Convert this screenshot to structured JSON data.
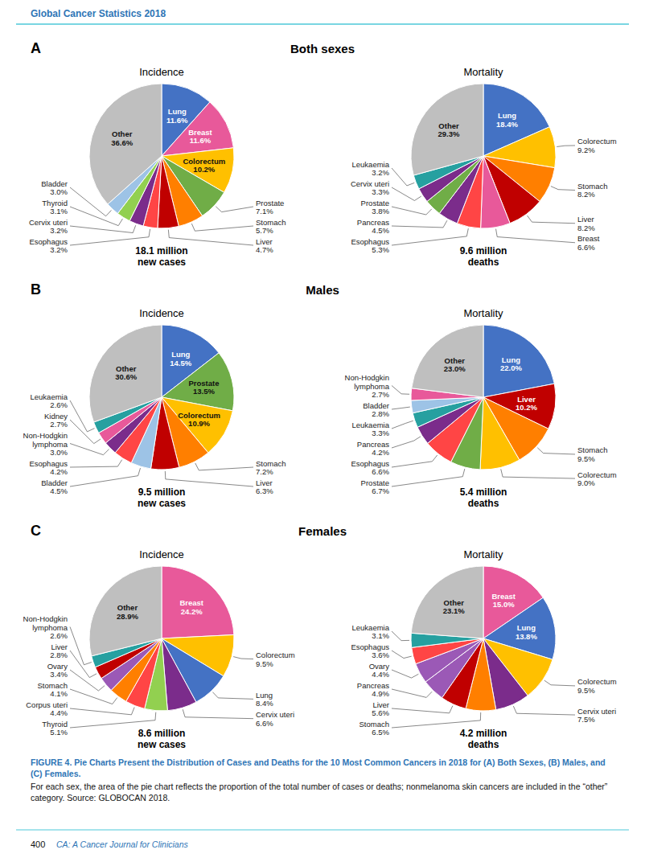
{
  "header": "Global Cancer Statistics 2018",
  "caption": [
    "FIGURE 4. Pie Charts Present the Distribution of Cases and Deaths for the 10 Most Common Cancers in 2018 for (A) Both Sexes, (B) Males, and (C) Females.",
    "For each sex, the area of the pie chart reflects the proportion of the total number of cases or deaths; nonmelanoma skin cancers are included in the “other” category. Source: GLOBOCAN 2018."
  ],
  "footer": {
    "page": "400",
    "journal": "CA: A Cancer Journal for Clinicians"
  },
  "sections": [
    {
      "label": "A",
      "title": "Both sexes"
    },
    {
      "label": "B",
      "title": "Males"
    },
    {
      "label": "C",
      "title": "Females"
    }
  ],
  "chart_data": [
    {
      "type": "pie",
      "title": "Incidence",
      "data_labels": true,
      "categories": [
        "Lung",
        "Breast",
        "Colorectum",
        "Prostate",
        "Stomach",
        "Liver",
        "Esophagus",
        "Cervix uteri",
        "Thyroid",
        "Bladder",
        "Other"
      ],
      "values": [
        11.6,
        11.6,
        10.2,
        7.1,
        5.7,
        4.7,
        3.2,
        3.2,
        3.1,
        3.0,
        36.6
      ],
      "value_labels": [
        "11.6%",
        "11.6%",
        "10.2%",
        "7.1%",
        "5.7%",
        "4.7%",
        "3.2%",
        "3.2%",
        "3.1%",
        "3.0%",
        "36.6%"
      ],
      "colors": [
        "#4472C4",
        "#E8599A",
        "#FFC000",
        "#70AD47",
        "#FF7F00",
        "#C00000",
        "#FF4545",
        "#7B2C8B",
        "#92D050",
        "#9DC3E6",
        "#BFBFBF"
      ],
      "annotations": [
        "18.1 million\nnew cases"
      ]
    },
    {
      "type": "pie",
      "title": "Mortality",
      "data_labels": true,
      "categories": [
        "Lung",
        "Colorectum",
        "Stomach",
        "Liver",
        "Breast",
        "Esophagus",
        "Pancreas",
        "Prostate",
        "Cervix uteri",
        "Leukaemia",
        "Other"
      ],
      "values": [
        18.4,
        9.2,
        8.2,
        8.2,
        6.6,
        5.3,
        4.5,
        3.8,
        3.3,
        3.2,
        29.3
      ],
      "value_labels": [
        "18.4%",
        "9.2%",
        "8.2%",
        "8.2%",
        "6.6%",
        "5.3%",
        "4.5%",
        "3.8%",
        "3.3%",
        "3.2%",
        "29.3%"
      ],
      "colors": [
        "#4472C4",
        "#FFC000",
        "#FF7F00",
        "#C00000",
        "#E8599A",
        "#FF4545",
        "#7B2C8B",
        "#70AD47",
        "#7B2C8B",
        "#26A0A0",
        "#BFBFBF"
      ],
      "annotations": [
        "9.6 million\ndeaths"
      ]
    },
    {
      "type": "pie",
      "title": "Incidence",
      "data_labels": true,
      "categories": [
        "Lung",
        "Prostate",
        "Colorectum",
        "Stomach",
        "Liver",
        "Bladder",
        "Esophagus",
        "Non-Hodgkin\nlymphoma",
        "Kidney",
        "Leukaemia",
        "Other"
      ],
      "values": [
        14.5,
        13.5,
        10.9,
        7.2,
        6.3,
        4.5,
        4.2,
        3.0,
        2.7,
        2.6,
        30.6
      ],
      "value_labels": [
        "14.5%",
        "13.5%",
        "10.9%",
        "7.2%",
        "6.3%",
        "4.5%",
        "4.2%",
        "3.0%",
        "2.7%",
        "2.6%",
        "30.6%"
      ],
      "colors": [
        "#4472C4",
        "#70AD47",
        "#FFC000",
        "#FF7F00",
        "#C00000",
        "#9DC3E6",
        "#FF4545",
        "#7B2C8B",
        "#E8599A",
        "#26A0A0",
        "#BFBFBF"
      ],
      "annotations": [
        "9.5 million\nnew cases"
      ]
    },
    {
      "type": "pie",
      "title": "Mortality",
      "data_labels": true,
      "categories": [
        "Lung",
        "Liver",
        "Stomach",
        "Colorectum",
        "Prostate",
        "Esophagus",
        "Pancreas",
        "Leukaemia",
        "Bladder",
        "Non-Hodgkin\nlymphoma",
        "Other"
      ],
      "values": [
        22.0,
        10.2,
        9.5,
        9.0,
        6.7,
        6.6,
        4.2,
        3.3,
        2.8,
        2.7,
        23.0
      ],
      "value_labels": [
        "22.0%",
        "10.2%",
        "9.5%",
        "9.0%",
        "6.7%",
        "6.6%",
        "4.2%",
        "3.3%",
        "2.8%",
        "2.7%",
        "23.0%"
      ],
      "colors": [
        "#4472C4",
        "#C00000",
        "#FF7F00",
        "#FFC000",
        "#70AD47",
        "#FF4545",
        "#7B2C8B",
        "#26A0A0",
        "#9DC3E6",
        "#E8599A",
        "#BFBFBF"
      ],
      "annotations": [
        "5.4 million\ndeaths"
      ]
    },
    {
      "type": "pie",
      "title": "Incidence",
      "data_labels": true,
      "categories": [
        "Breast",
        "Colorectum",
        "Lung",
        "Cervix uteri",
        "Thyroid",
        "Corpus uteri",
        "Stomach",
        "Ovary",
        "Liver",
        "Non-Hodgkin\nlymphoma",
        "Other"
      ],
      "values": [
        24.2,
        9.5,
        8.4,
        6.6,
        5.1,
        4.4,
        4.1,
        3.4,
        2.8,
        2.6,
        28.9
      ],
      "value_labels": [
        "24.2%",
        "9.5%",
        "8.4%",
        "6.6%",
        "5.1%",
        "4.4%",
        "4.1%",
        "3.4%",
        "2.8%",
        "2.6%",
        "28.9%"
      ],
      "colors": [
        "#E8599A",
        "#FFC000",
        "#4472C4",
        "#7B2C8B",
        "#92D050",
        "#FF4545",
        "#FF7F00",
        "#9B59B6",
        "#C00000",
        "#26A0A0",
        "#BFBFBF"
      ],
      "annotations": [
        "8.6 million\nnew cases"
      ]
    },
    {
      "type": "pie",
      "title": "Mortality",
      "data_labels": true,
      "categories": [
        "Breast",
        "Lung",
        "Colorectum",
        "Cervix uteri",
        "Stomach",
        "Liver",
        "Pancreas",
        "Ovary",
        "Esophagus",
        "Leukaemia",
        "Other"
      ],
      "values": [
        15.0,
        13.8,
        9.5,
        7.5,
        6.5,
        5.6,
        4.9,
        4.4,
        3.6,
        3.1,
        23.1
      ],
      "value_labels": [
        "15.0%",
        "13.8%",
        "9.5%",
        "7.5%",
        "6.5%",
        "5.6%",
        "4.9%",
        "4.4%",
        "3.6%",
        "3.1%",
        "23.1%"
      ],
      "colors": [
        "#E8599A",
        "#4472C4",
        "#FFC000",
        "#7B2C8B",
        "#FF7F00",
        "#C00000",
        "#9B59B6",
        "#9B59B6",
        "#FF4545",
        "#26A0A0",
        "#BFBFBF"
      ],
      "annotations": [
        "4.2 million\ndeaths"
      ]
    }
  ]
}
